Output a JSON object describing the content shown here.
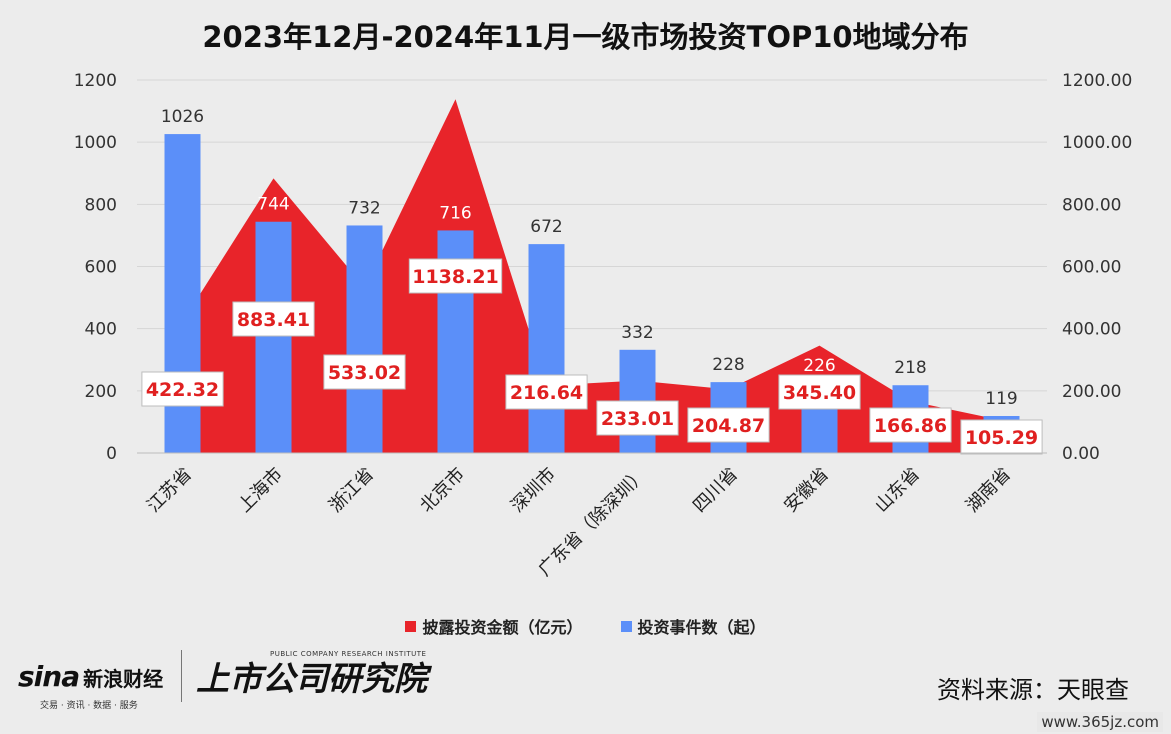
{
  "chart_data": {
    "type": "bar",
    "title": "2023年12月-2024年11月一级市场投资TOP10地域分布",
    "categories": [
      "江苏省",
      "上海市",
      "浙江省",
      "北京市",
      "深圳市",
      "广东省（除深圳）",
      "四川省",
      "安徽省",
      "山东省",
      "湖南省"
    ],
    "series": [
      {
        "name": "披露投资金额（亿元）",
        "type": "area",
        "axis": "right",
        "color": "#e8242a",
        "values": [
          422.32,
          883.41,
          533.02,
          1138.21,
          216.64,
          233.01,
          204.87,
          345.4,
          166.86,
          105.29
        ],
        "labels": [
          "422.32",
          "883.41",
          "533.02",
          "1138.21",
          "216.64",
          "233.01",
          "204.87",
          "345.40",
          "166.86",
          "105.29"
        ]
      },
      {
        "name": "投资事件数（起）",
        "type": "bar",
        "axis": "left",
        "color": "#5b8ff9",
        "values": [
          1026,
          744,
          732,
          716,
          672,
          332,
          228,
          226,
          218,
          119
        ]
      }
    ],
    "y_left": {
      "min": 0,
      "max": 1200,
      "ticks": [
        "0",
        "200",
        "400",
        "600",
        "800",
        "1000",
        "1200"
      ]
    },
    "y_right": {
      "min": 0,
      "max": 1200,
      "ticks": [
        "0.00",
        "200.00",
        "400.00",
        "600.00",
        "800.00",
        "1000.00",
        "1200.00"
      ]
    },
    "grid": true,
    "legend_position": "bottom"
  },
  "footer": {
    "sina_logo": "sina",
    "sina_name": "新浪财经",
    "sina_tagline": "交易 · 资讯 · 数据 · 服务",
    "lab_name": "上市公司研究院",
    "lab_en": "PUBLIC COMPANY RESEARCH INSTITUTE",
    "source": "资料来源：天眼查",
    "watermark": "www.365jz.com"
  }
}
